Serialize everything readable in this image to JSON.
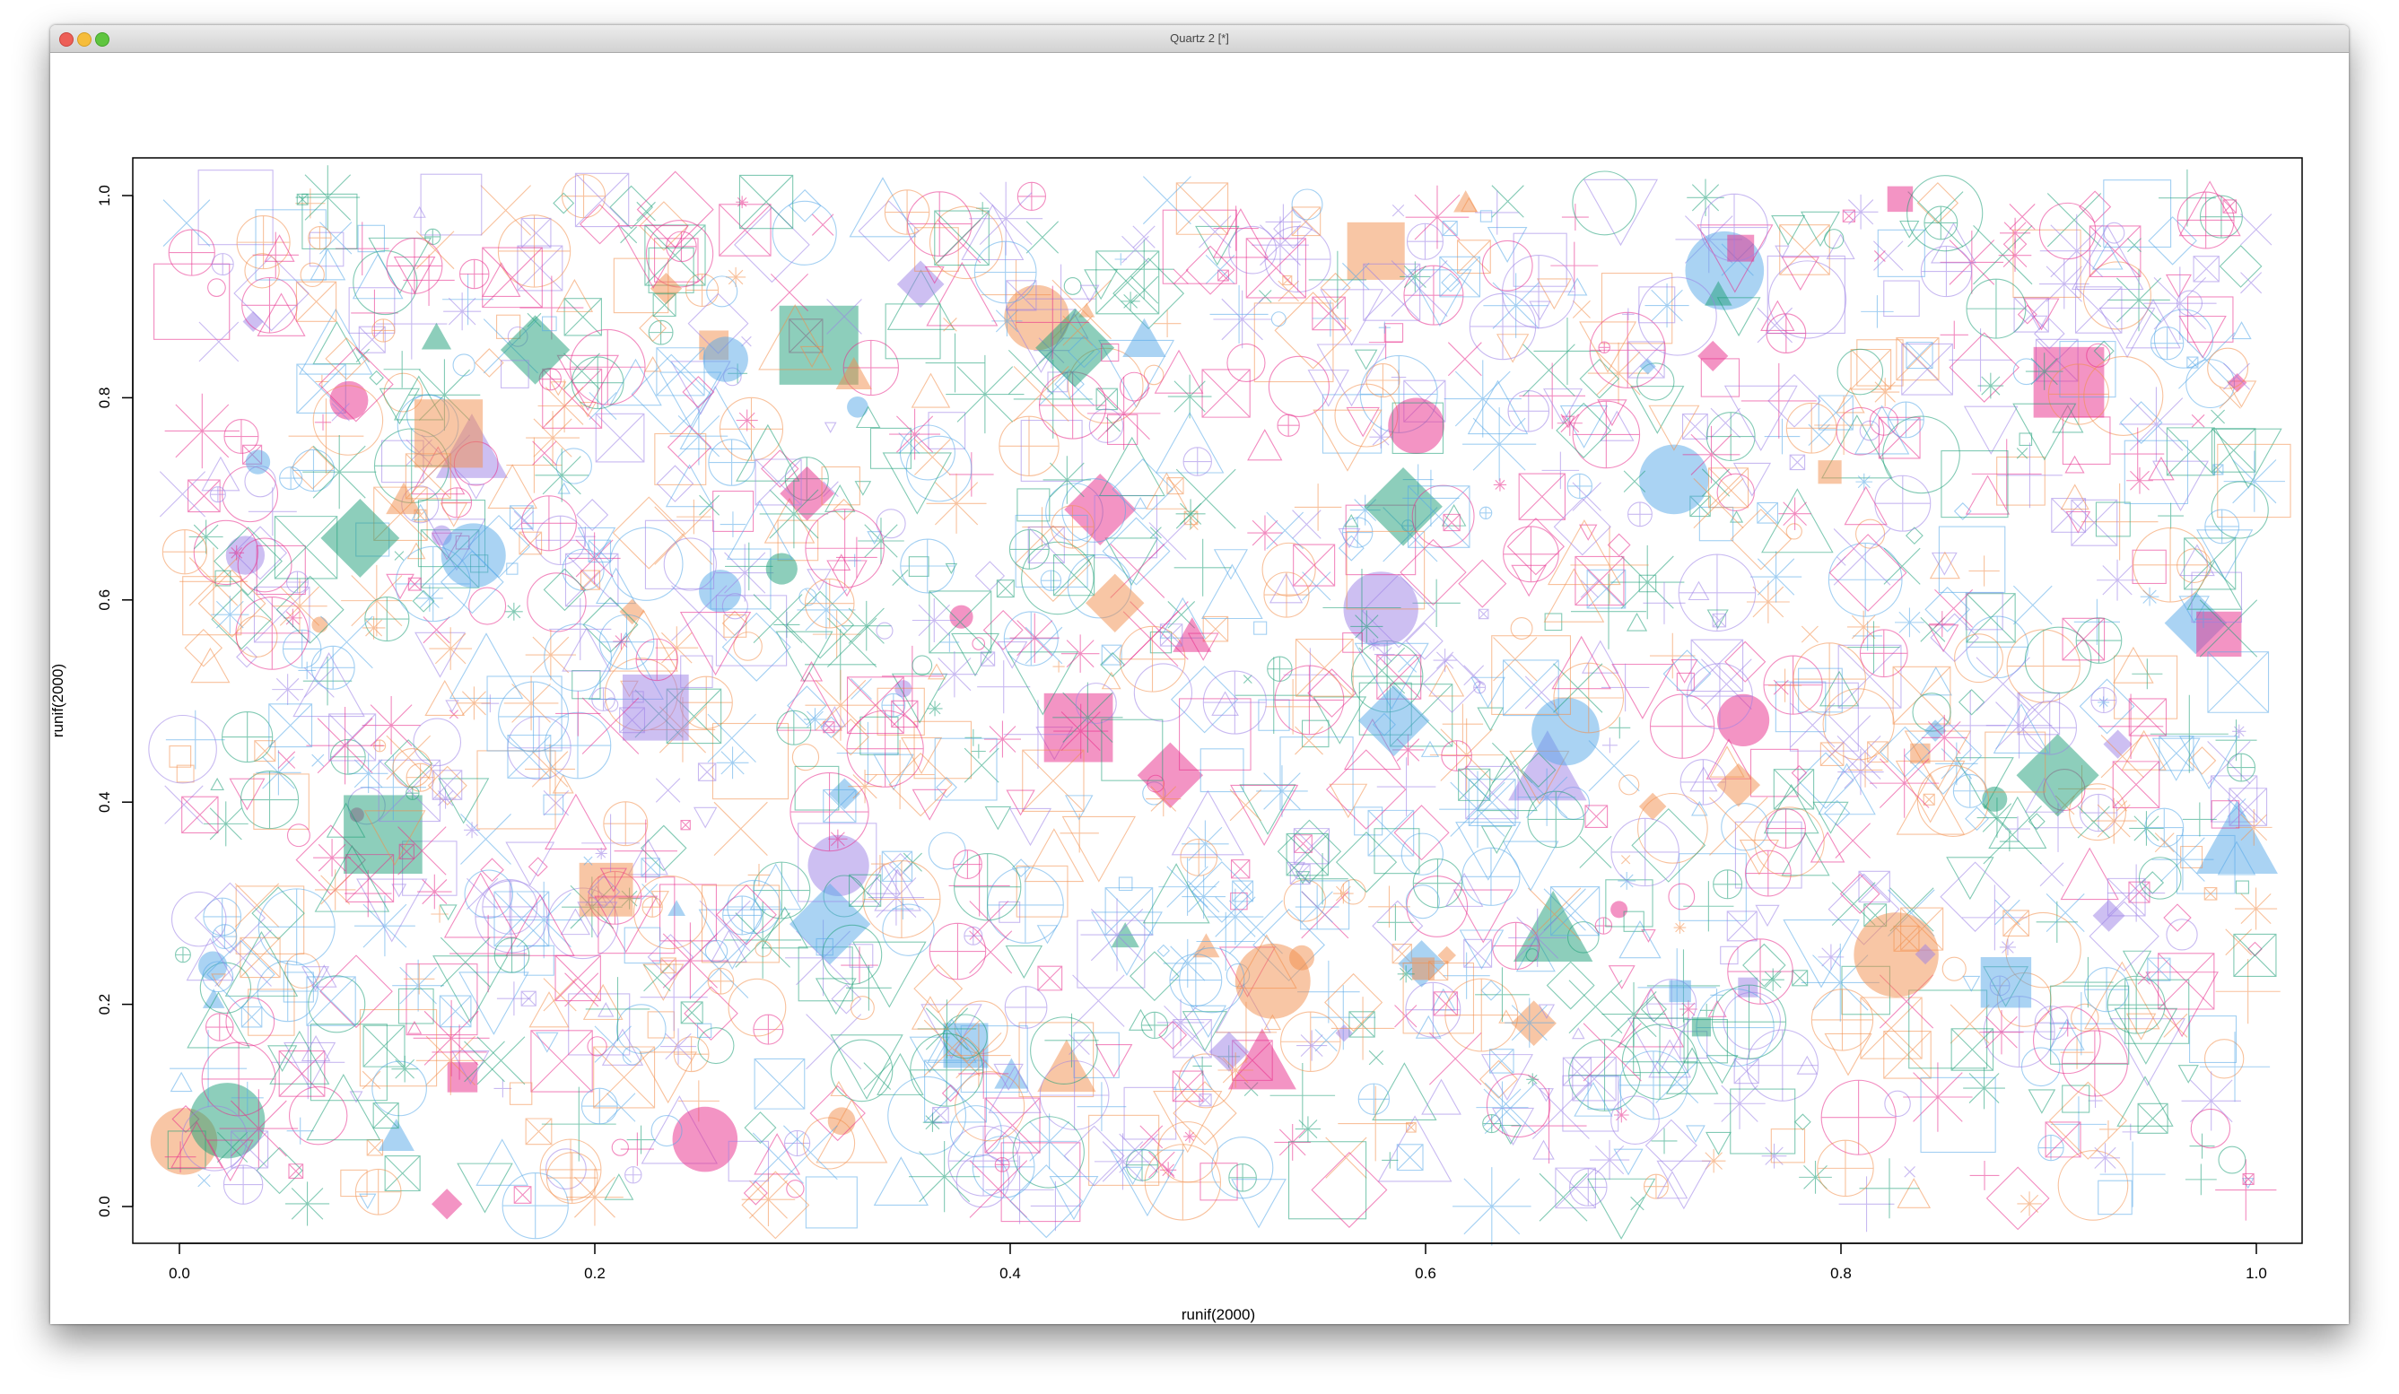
{
  "window": {
    "title": "Quartz 2 [*]"
  },
  "chart_data": {
    "type": "scatter",
    "n_points": 2000,
    "xlabel": "runif(2000)",
    "ylabel": "runif(2000)",
    "xlim": [
      0,
      1
    ],
    "ylim": [
      0,
      1
    ],
    "x_ticks": [
      0.0,
      0.2,
      0.4,
      0.6,
      0.8,
      1.0
    ],
    "y_ticks": [
      0.0,
      0.2,
      0.4,
      0.6,
      0.8,
      1.0
    ],
    "x_tick_labels": [
      "0.0",
      "0.2",
      "0.4",
      "0.6",
      "0.8",
      "1.0"
    ],
    "y_tick_labels": [
      "0.0",
      "0.2",
      "0.4",
      "0.6",
      "0.8",
      "1.0"
    ],
    "grid": false,
    "legend": "none",
    "palette": [
      "#1b9e77",
      "#e7298a",
      "#56a8e8",
      "#f28e4b",
      "#9b7fe6"
    ],
    "marker_shapes": [
      "circle",
      "square",
      "triangle",
      "diamond",
      "plus",
      "cross",
      "star",
      "square-cross",
      "circle-plus",
      "triangle-down"
    ]
  }
}
